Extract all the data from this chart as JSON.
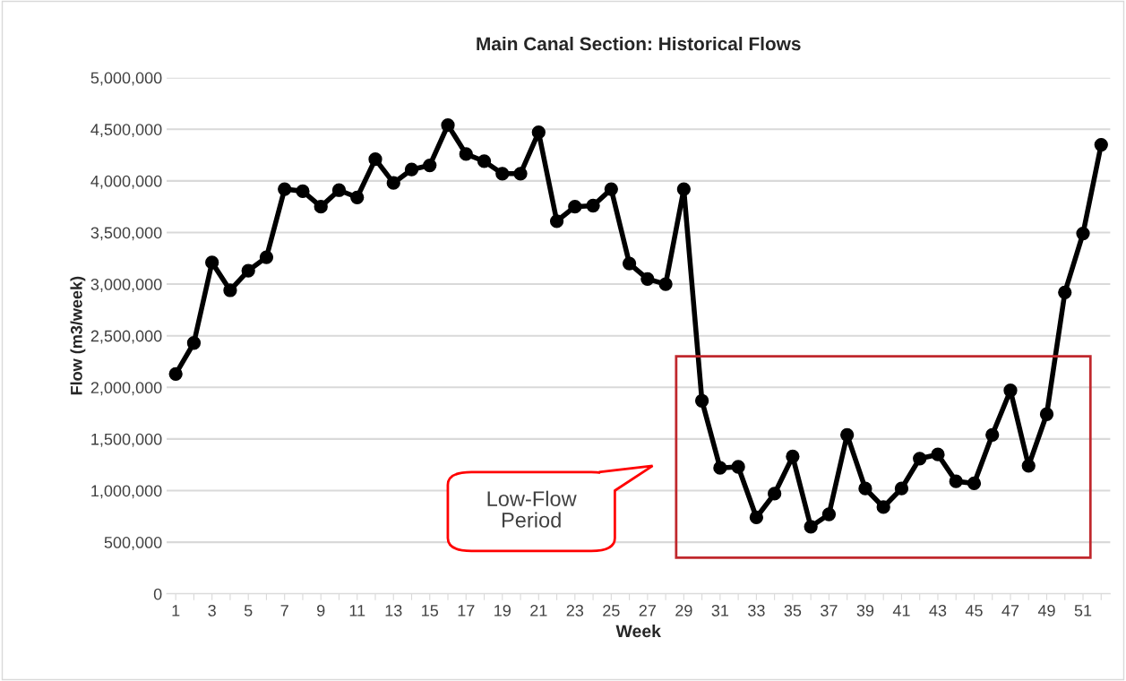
{
  "chart_data": {
    "type": "line",
    "title": "Main Canal Section: Historical Flows",
    "xlabel": "Week",
    "ylabel": "Flow (m3/week)",
    "categories": [
      "1",
      null,
      "3",
      null,
      "5",
      null,
      "7",
      null,
      "9",
      null,
      "11",
      null,
      "13",
      null,
      "15",
      null,
      "17",
      null,
      "19",
      null,
      "21",
      null,
      "23",
      null,
      "25",
      null,
      "27",
      null,
      "29",
      null,
      "31",
      null,
      "33",
      null,
      "35",
      null,
      "37",
      null,
      "39",
      null,
      "41",
      null,
      "43",
      null,
      "45",
      null,
      "47",
      null,
      "49",
      null,
      "51",
      null
    ],
    "series": [
      {
        "color": "#000000",
        "values": [
          2130000,
          2430000,
          3210000,
          2940000,
          3130000,
          3260000,
          3920000,
          3900000,
          3750000,
          3910000,
          3840000,
          4210000,
          3980000,
          4110000,
          4150000,
          4540000,
          4260000,
          4190000,
          4070000,
          4070000,
          4470000,
          3610000,
          3750000,
          3760000,
          3920000,
          3200000,
          3050000,
          3000000,
          3920000,
          1870000,
          1220000,
          1230000,
          740000,
          970000,
          1330000,
          650000,
          770000,
          1540000,
          1020000,
          840000,
          1020000,
          1310000,
          1350000,
          1090000,
          1070000,
          1540000,
          1970000,
          1240000,
          1740000,
          2920000,
          3490000,
          4350000
        ]
      }
    ],
    "ylim": [
      0,
      5000000
    ],
    "yticks": [
      0,
      {
        "value": 500000,
        "label": "500,000"
      },
      {
        "value": 1000000,
        "label": "1,000,000"
      },
      {
        "value": 1500000,
        "label": "1,500,000"
      },
      {
        "value": 2000000,
        "label": "2,000,000"
      },
      {
        "value": 2500000,
        "label": "2,500,000"
      },
      {
        "value": 3000000,
        "label": "3,000,000"
      },
      {
        "value": 3500000,
        "label": "3,500,000"
      },
      {
        "value": 4000000,
        "label": "4,000,000"
      },
      {
        "value": 4500000,
        "label": "4,500,000"
      },
      {
        "value": 5000000,
        "label": "5,000,000"
      }
    ],
    "grid": "y",
    "marker": "circle",
    "line_style": "solid",
    "annotations": [
      "Low-Flow Period"
    ]
  }
}
